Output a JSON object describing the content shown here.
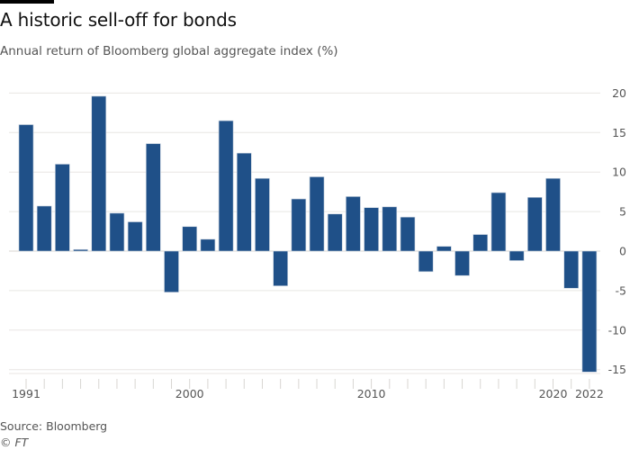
{
  "header": {
    "title": "A historic sell-off for bonds",
    "subtitle": "Annual return of Bloomberg global aggregate index (%)"
  },
  "footer": {
    "source": "Source: Bloomberg",
    "credit": "© FT"
  },
  "colors": {
    "bar": "#1f5088",
    "grid": "#e8e6e3",
    "text": "#555555"
  },
  "chart_data": {
    "type": "bar",
    "title": "A historic sell-off for bonds",
    "subtitle": "Annual return of Bloomberg global aggregate index (%)",
    "xlabel": "",
    "ylabel": "",
    "ylim": [
      -15,
      20
    ],
    "yticks": [
      20,
      15,
      10,
      5,
      0,
      -5,
      -10,
      -15
    ],
    "y_axis_side": "right",
    "grid": true,
    "legend": "none",
    "x_tick_labels": [
      {
        "year": 1991,
        "label": "1991"
      },
      {
        "year": 2000,
        "label": "2000"
      },
      {
        "year": 2010,
        "label": "2010"
      },
      {
        "year": 2020,
        "label": "2020"
      },
      {
        "year": 2022,
        "label": "2022"
      }
    ],
    "categories": [
      1991,
      1992,
      1993,
      1994,
      1995,
      1996,
      1997,
      1998,
      1999,
      2000,
      2001,
      2002,
      2003,
      2004,
      2005,
      2006,
      2007,
      2008,
      2009,
      2010,
      2011,
      2012,
      2013,
      2014,
      2015,
      2016,
      2017,
      2018,
      2019,
      2020,
      2021,
      2022
    ],
    "series": [
      {
        "name": "Annual return (%)",
        "values": [
          16.0,
          5.7,
          11.0,
          0.2,
          19.6,
          4.8,
          3.7,
          13.6,
          -5.2,
          3.1,
          1.5,
          16.5,
          12.4,
          9.2,
          -4.4,
          6.6,
          9.4,
          4.7,
          6.9,
          5.5,
          5.6,
          4.3,
          -2.6,
          0.6,
          -3.1,
          2.1,
          7.4,
          -1.2,
          6.8,
          9.2,
          -4.7,
          -15.3
        ]
      }
    ],
    "source": "Source: Bloomberg"
  }
}
